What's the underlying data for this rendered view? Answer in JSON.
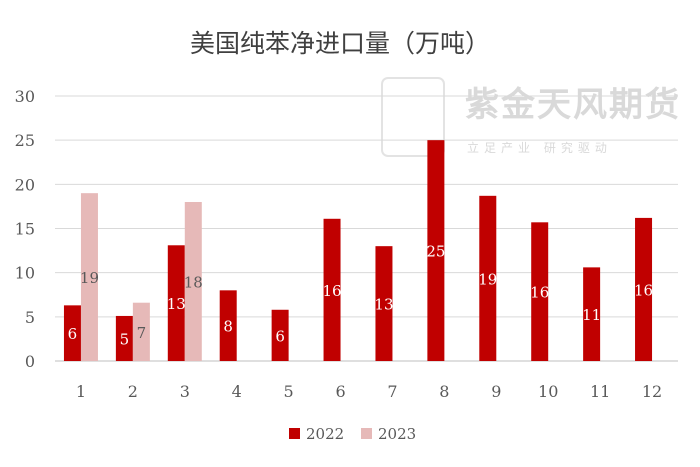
{
  "chart_data": {
    "type": "bar",
    "title": "美国纯苯净进口量（万吨）",
    "categories": [
      "1",
      "2",
      "3",
      "4",
      "5",
      "6",
      "7",
      "8",
      "9",
      "10",
      "11",
      "12"
    ],
    "series": [
      {
        "name": "2022",
        "color": "#c00000",
        "values": [
          6.3,
          5.1,
          13.1,
          8.0,
          5.8,
          16.1,
          13.0,
          25.0,
          18.7,
          15.7,
          10.6,
          16.2
        ],
        "labels": [
          "6",
          "5",
          "13",
          "8",
          "6",
          "16",
          "13",
          "25",
          "19",
          "16",
          "11",
          "16"
        ]
      },
      {
        "name": "2023",
        "color": "#e6b9b8",
        "values": [
          19.0,
          6.6,
          18.0,
          null,
          null,
          null,
          null,
          null,
          null,
          null,
          null,
          null
        ],
        "labels": [
          "19",
          "7",
          "18",
          "",
          "",
          "",
          "",
          "",
          "",
          "",
          "",
          ""
        ]
      }
    ],
    "yticks": [
      "0",
      "5",
      "10",
      "15",
      "20",
      "25",
      "30"
    ],
    "ylim": [
      0,
      30
    ],
    "grid": true,
    "legend_position": "bottom"
  },
  "watermark": {
    "logo_text": "紫金天风",
    "name": "紫金天风期货",
    "slogan": "立足产业 研究驱动"
  }
}
